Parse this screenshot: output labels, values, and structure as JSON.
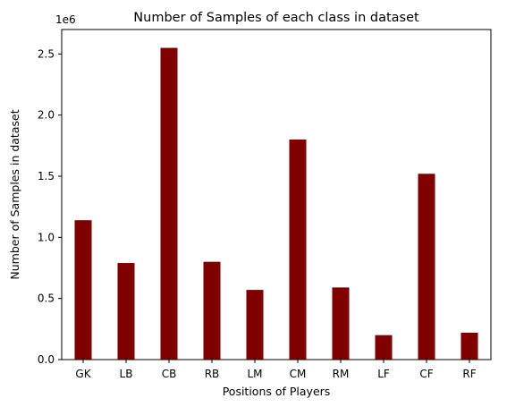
{
  "chart_data": {
    "type": "bar",
    "title": "Number of Samples of each class in dataset",
    "xlabel": "Positions of Players",
    "ylabel": "Number of Samples in dataset",
    "y_offset_label": "1e6",
    "categories": [
      "GK",
      "LB",
      "CB",
      "RB",
      "LM",
      "CM",
      "RM",
      "LF",
      "CF",
      "RF"
    ],
    "values": [
      1140000,
      790000,
      2550000,
      800000,
      570000,
      1800000,
      590000,
      200000,
      1520000,
      220000
    ],
    "ylim": [
      0,
      2700000
    ],
    "yticks": [
      0,
      500000,
      1000000,
      1500000,
      2000000,
      2500000
    ],
    "ytick_labels": [
      "0.0",
      "0.5",
      "1.0",
      "1.5",
      "2.0",
      "2.5"
    ],
    "bar_color": "#800000",
    "grid": false,
    "legend": "none"
  }
}
